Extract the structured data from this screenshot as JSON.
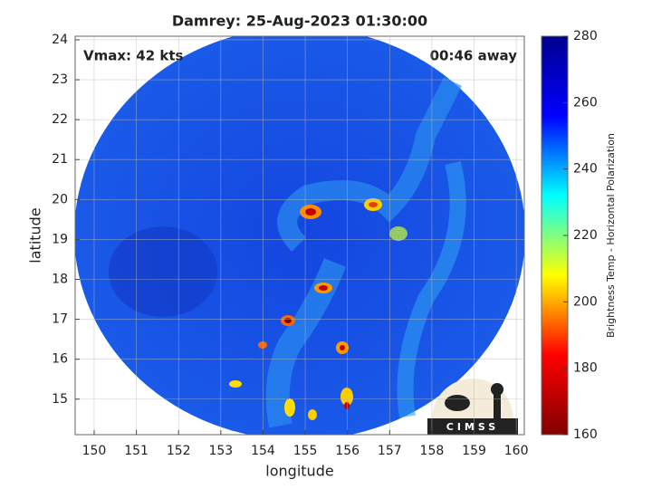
{
  "chart_data": {
    "type": "heatmap",
    "title": "Damrey: 25-Aug-2023 01:30:00",
    "annotations": [
      "Vmax: 42 kts",
      "00:46 away"
    ],
    "xlabel": "longitude",
    "ylabel": "latitude",
    "xlim": [
      149.55,
      160.19
    ],
    "ylim": [
      14.11,
      24.09
    ],
    "xticks": [
      150,
      151,
      152,
      153,
      154,
      155,
      156,
      157,
      158,
      159,
      160
    ],
    "yticks": [
      15,
      16,
      17,
      18,
      19,
      20,
      21,
      22,
      23,
      24
    ],
    "grid": true,
    "colorbar": {
      "label": "Brightness Temp - Horizontal Polarization",
      "lim": [
        160,
        280
      ],
      "ticks": [
        160,
        180,
        200,
        220,
        240,
        260,
        280
      ],
      "colors": [
        "#800000",
        "#ff0000",
        "#ffff00",
        "#00ffff",
        "#0000ff",
        "#00008f"
      ]
    },
    "logo_text": "CIMSS"
  }
}
